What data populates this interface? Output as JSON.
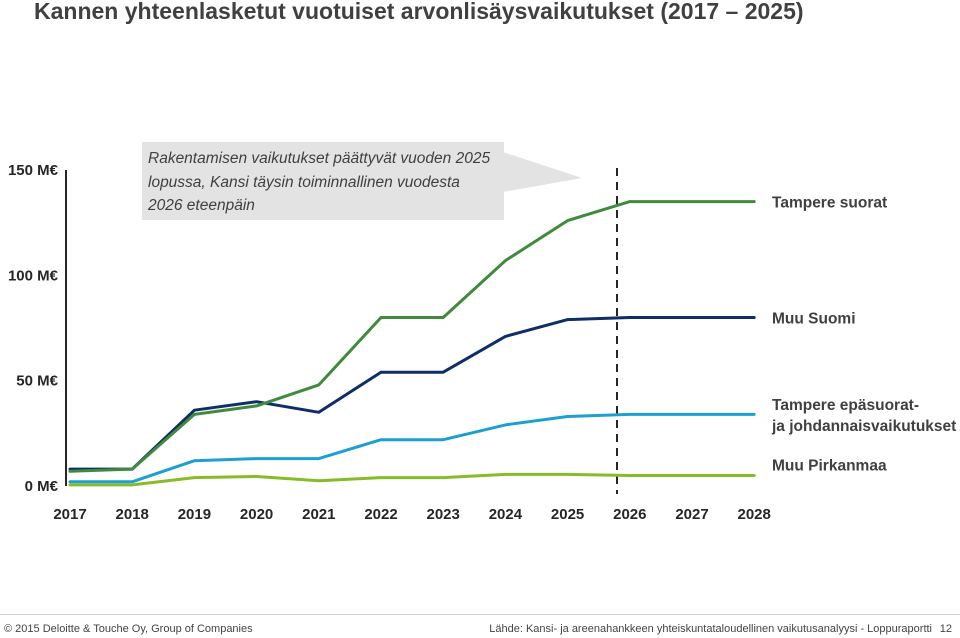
{
  "chart_data": {
    "type": "line",
    "title": "Kannen yhteenlasketut vuotuiset arvonlisäysvaikutukset (2017 – 2025)",
    "x": [
      "2017",
      "2018",
      "2019",
      "2020",
      "2021",
      "2022",
      "2023",
      "2024",
      "2025",
      "2026",
      "2027",
      "2028"
    ],
    "y_ticks": [
      "150 M€",
      "100 M€",
      "50 M€",
      "0 M€"
    ],
    "y_tick_values": [
      150,
      100,
      50,
      0
    ],
    "ylim": [
      0,
      150
    ],
    "series": [
      {
        "name": "Tampere suorat",
        "color": "#3f8a3c",
        "values": [
          7,
          8,
          34,
          38,
          48,
          80,
          80,
          107,
          126,
          135,
          135,
          135
        ]
      },
      {
        "name": "Muu Suomi",
        "color": "#0f2d66",
        "values": [
          8,
          8,
          36,
          40,
          35,
          54,
          54,
          71,
          79,
          80,
          80,
          80
        ]
      },
      {
        "name": "Tampere epäsuorat- ja johdannaisvaikutukset",
        "color": "#1da0d1",
        "values": [
          2,
          2,
          12,
          13,
          13,
          22,
          22,
          29,
          33,
          34,
          34,
          34
        ]
      },
      {
        "name": "Muu Pirkanmaa",
        "color": "#86bc25",
        "values": [
          0.5,
          0.5,
          4,
          4.5,
          2.5,
          4,
          4,
          5.5,
          5.5,
          5,
          5,
          5
        ]
      }
    ],
    "annotation": "Rakentamisen vaikutukset päättyvät vuoden 2025 lopussa, Kansi täysin toiminnallinen vuodesta 2026 eteenpäin",
    "grid": false,
    "legend": "right"
  },
  "footer": {
    "copyright": "© 2015 Deloitte & Touche Oy, Group of Companies",
    "source": "Lähde: Kansi- ja areenahankkeen yhteiskuntataloudellinen vaikutusanalyysi - Loppuraportti",
    "page": "12"
  }
}
